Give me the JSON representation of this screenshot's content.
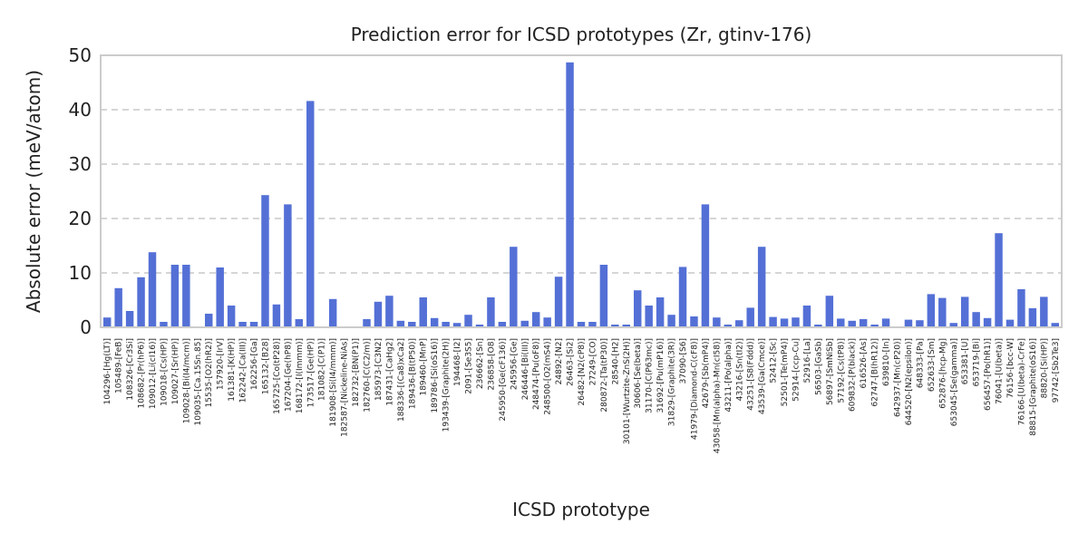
{
  "chart_data": {
    "type": "bar",
    "title": "Prediction error for ICSD prototypes (Zr, gtinv-176)",
    "xlabel": "ICSD prototype",
    "ylabel": "Absolute error (meV/atom)",
    "ylim": [
      0,
      50
    ],
    "yticks": [
      0,
      10,
      20,
      30,
      40,
      50
    ],
    "grid": "y-dashed",
    "bar_color": "#5470d6",
    "categories": [
      "104296-[Hg(LT)]",
      "105489-[FeB]",
      "108326-[Cr3Si]",
      "108682-[Pr(hP6)]",
      "109012-[Li(cI16)]",
      "109018-[Cs(HP)]",
      "109027-[Sr(HP)]",
      "109028-[Bi(I4/mcm)]",
      "109035-[Ca.15Sn.85]",
      "15535-[O2(hR2)]",
      "157920-[IrV]",
      "161381-[K(HP)]",
      "162242-[Ca(III)]",
      "162256-[Ga]",
      "165132-[B28]",
      "165725-[Co(tP28)]",
      "167204-[Ge(hP8)]",
      "168172-[I(Immm)]",
      "173517-[Ge(HP)]",
      "181082-[C(P1)]",
      "181908-[Si(I4/mmm)]",
      "182587-[Nickeline-NiAs]",
      "182732-[BN(P1)]",
      "182760-[C(C2/m)]",
      "185973-[C3N2]",
      "187431-[CaHg2]",
      "188336-[(Ca8)xCa2]",
      "189436-[B(tP50)]",
      "189460-[MnP]",
      "189786-[Si(oS16)]",
      "193439-[Graphite(2H)]",
      "194468-[I2]",
      "2091-[Se3S5]",
      "236662-[Sn]",
      "236858-[O8]",
      "245950-[Ge(cF136)]",
      "245956-[Ge]",
      "246446-[Bi(III)]",
      "248474-[Pu(oF8)]",
      "248500-[O2(mS4)]",
      "24892-[N2]",
      "26463-[Si2]",
      "26482-[N2(cP8)]",
      "27249-[CO]",
      "280872-[Ta(tP30)]",
      "28540-[H2]",
      "30101-[Wurtzite-ZnS(2H)]",
      "30606-[Se(beta)]",
      "31170-[C(P63mc)]",
      "31692-[Pu(mP16)]",
      "31829-[Graphite(3R)]",
      "37090-[S6]",
      "41979-[Diamond-C(cF8)]",
      "42679-[Sb(mP4)]",
      "43058-[Mn(alpha)-Mn(cI58)]",
      "43211-[Po(alpha)]",
      "43216-[Sn(tI2)]",
      "43251-[S8(Fddd)]",
      "43539-[Ga(Cmce)]",
      "52412-[Sc]",
      "52501-[Te(mP4)]",
      "52914-[ccp-Cu]",
      "52916-[La]",
      "56503-[GaSb]",
      "56897-[SmNiSb]",
      "57192-[Cs(tP8)]",
      "609832-[P(black)]",
      "616526-[As]",
      "62747-[B(hR12)]",
      "639810-[In]",
      "642937-[Mn(cP20)]",
      "644520-[N2(epsilon)]",
      "648333-[Pa]",
      "652633-[Sm]",
      "652876-[hcp-Mg]",
      "653045-[Se(gamma)]",
      "653381-[U]",
      "653719-[Bi]",
      "656457-[Po(hR1)]",
      "76041-[U(beta)]",
      "76156-[bcc-W]",
      "76166-[U(beta)-CrFe]",
      "88815-[Graphite(oS16)]",
      "88820-[Si(HP)]",
      "97742-[Sb2Te3]"
    ],
    "values": [
      1.8,
      7.2,
      3.0,
      9.2,
      13.8,
      1.0,
      11.5,
      11.5,
      0.1,
      2.5,
      11.0,
      4.0,
      1.0,
      1.0,
      24.3,
      4.2,
      22.6,
      1.5,
      41.6,
      0.1,
      5.2,
      0.1,
      0.1,
      1.5,
      4.7,
      5.8,
      1.2,
      1.0,
      5.5,
      1.7,
      1.0,
      0.8,
      2.3,
      0.5,
      5.5,
      1.0,
      14.8,
      1.2,
      2.8,
      1.8,
      9.3,
      48.7,
      1.0,
      1.0,
      11.5,
      0.5,
      0.5,
      6.8,
      4.0,
      5.5,
      2.3,
      11.1,
      2.0,
      22.6,
      1.8,
      0.5,
      1.3,
      3.6,
      14.8,
      1.9,
      1.6,
      1.8,
      4.0,
      0.5,
      5.8,
      1.6,
      1.2,
      1.5,
      0.5,
      1.6,
      0.1,
      1.4,
      1.3,
      6.1,
      5.4,
      0.8,
      5.6,
      2.8,
      1.7,
      17.3,
      1.4,
      7.0,
      3.5,
      5.6,
      0.8
    ]
  }
}
